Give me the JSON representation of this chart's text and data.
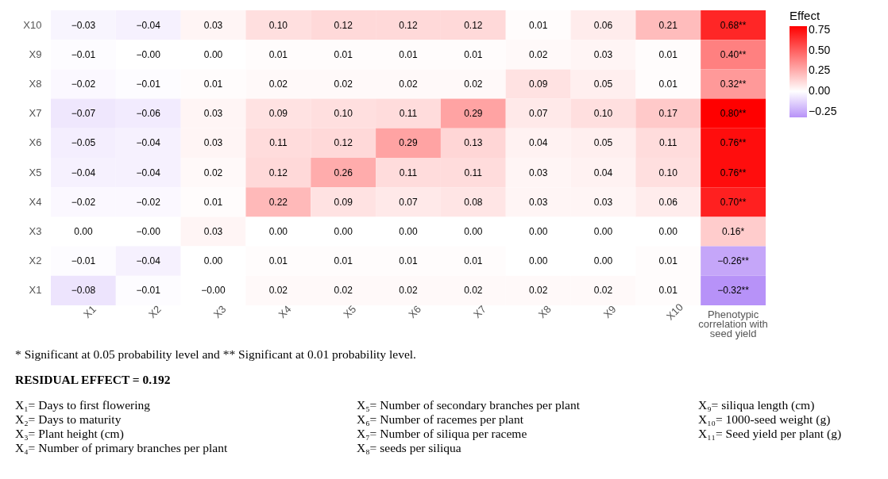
{
  "chart_data": {
    "type": "heatmap",
    "categories": [
      "X1",
      "X2",
      "X3",
      "X4",
      "X5",
      "X6",
      "X7",
      "X8",
      "X9",
      "X10",
      "Phenotypic correlation with seed yield"
    ],
    "y_categories": [
      "X10",
      "X9",
      "X8",
      "X7",
      "X6",
      "X5",
      "X4",
      "X3",
      "X2",
      "X1"
    ],
    "cells": [
      [
        -0.03,
        -0.04,
        0.03,
        0.1,
        0.12,
        0.12,
        0.12,
        0.01,
        0.06,
        0.21,
        0.68
      ],
      [
        -0.01,
        0.0,
        0.0,
        0.01,
        0.01,
        0.01,
        0.01,
        0.02,
        0.03,
        0.01,
        0.4
      ],
      [
        -0.02,
        -0.01,
        0.01,
        0.02,
        0.02,
        0.02,
        0.02,
        0.09,
        0.05,
        0.01,
        0.32
      ],
      [
        -0.07,
        -0.06,
        0.03,
        0.09,
        0.1,
        0.11,
        0.29,
        0.07,
        0.1,
        0.17,
        0.8
      ],
      [
        -0.05,
        -0.04,
        0.03,
        0.11,
        0.12,
        0.29,
        0.13,
        0.04,
        0.05,
        0.11,
        0.76
      ],
      [
        -0.04,
        -0.04,
        0.02,
        0.12,
        0.26,
        0.11,
        0.11,
        0.03,
        0.04,
        0.1,
        0.76
      ],
      [
        -0.02,
        -0.02,
        0.01,
        0.22,
        0.09,
        0.07,
        0.08,
        0.03,
        0.03,
        0.06,
        0.7
      ],
      [
        0.0,
        0.0,
        0.03,
        0.0,
        0.0,
        0.0,
        0.0,
        0.0,
        0.0,
        0.0,
        0.16
      ],
      [
        -0.01,
        -0.04,
        0.0,
        0.01,
        0.01,
        0.01,
        0.01,
        0.0,
        0.0,
        0.01,
        -0.26
      ],
      [
        -0.08,
        -0.01,
        0.0,
        0.02,
        0.02,
        0.02,
        0.02,
        0.02,
        0.02,
        0.01,
        -0.32
      ]
    ],
    "cell_labels": [
      [
        "−0.03",
        "−0.04",
        "0.03",
        "0.10",
        "0.12",
        "0.12",
        "0.12",
        "0.01",
        "0.06",
        "0.21",
        "0.68**"
      ],
      [
        "−0.01",
        "−0.00",
        "0.00",
        "0.01",
        "0.01",
        "0.01",
        "0.01",
        "0.02",
        "0.03",
        "0.01",
        "0.40**"
      ],
      [
        "−0.02",
        "−0.01",
        "0.01",
        "0.02",
        "0.02",
        "0.02",
        "0.02",
        "0.09",
        "0.05",
        "0.01",
        "0.32**"
      ],
      [
        "−0.07",
        "−0.06",
        "0.03",
        "0.09",
        "0.10",
        "0.11",
        "0.29",
        "0.07",
        "0.10",
        "0.17",
        "0.80**"
      ],
      [
        "−0.05",
        "−0.04",
        "0.03",
        "0.11",
        "0.12",
        "0.29",
        "0.13",
        "0.04",
        "0.05",
        "0.11",
        "0.76**"
      ],
      [
        "−0.04",
        "−0.04",
        "0.02",
        "0.12",
        "0.26",
        "0.11",
        "0.11",
        "0.03",
        "0.04",
        "0.10",
        "0.76**"
      ],
      [
        "−0.02",
        "−0.02",
        "0.01",
        "0.22",
        "0.09",
        "0.07",
        "0.08",
        "0.03",
        "0.03",
        "0.06",
        "0.70**"
      ],
      [
        "0.00",
        "−0.00",
        "0.03",
        "0.00",
        "0.00",
        "0.00",
        "0.00",
        "0.00",
        "0.00",
        "0.00",
        "0.16*"
      ],
      [
        "−0.01",
        "−0.04",
        "0.00",
        "0.01",
        "0.01",
        "0.01",
        "0.01",
        "0.00",
        "0.00",
        "0.01",
        "−0.26**"
      ],
      [
        "−0.08",
        "−0.01",
        "−0.00",
        "0.02",
        "0.02",
        "0.02",
        "0.02",
        "0.02",
        "0.02",
        "0.01",
        "−0.32**"
      ]
    ],
    "clabel": "Effect",
    "clim": [
      -0.32,
      0.8
    ],
    "cticks": [
      {
        "value": -0.25,
        "label": "−0.25"
      },
      {
        "value": 0,
        "label": "0.00"
      },
      {
        "value": 0.25,
        "label": "0.25"
      },
      {
        "value": 0.5,
        "label": "0.50"
      },
      {
        "value": 0.75,
        "label": "0.75"
      }
    ],
    "colors": [
      "#b792f8",
      "#ffffff",
      "#ff0000"
    ],
    "annotations": [
      "* Significant at 0.05 probability level and ** Significant at 0.01 probability level.",
      "RESIDUAL EFFECT = 0.192",
      "X₁= Days to first flowering",
      "X₂= Days to maturity",
      "X₃= Plant height (cm)",
      "X₄= Number of primary branches per plant",
      "X₅= Number of secondary branches per plant",
      "X₆= Number of racemes per plant",
      "X₇= Number of siliqua per raceme",
      "X₈= seeds per siliqua",
      "X₉= siliqua length (cm)",
      "X₁₀= 1000-seed weight (g)",
      "X₁₁= Seed yield per plant (g)"
    ]
  }
}
